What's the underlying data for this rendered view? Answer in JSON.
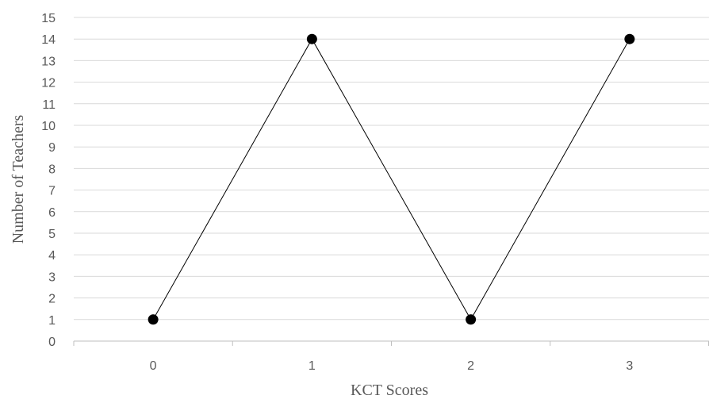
{
  "chart_data": {
    "type": "line",
    "title": "",
    "xlabel": "KCT Scores",
    "ylabel": "Number of Teachers",
    "categories": [
      "0",
      "1",
      "2",
      "3"
    ],
    "series": [
      {
        "values": [
          1,
          14,
          1,
          14
        ]
      }
    ],
    "ylim": [
      0,
      15
    ],
    "yticks": [
      "0",
      "1",
      "2",
      "3",
      "4",
      "5",
      "6",
      "7",
      "8",
      "9",
      "10",
      "11",
      "12",
      "13",
      "14",
      "15"
    ],
    "grid": true,
    "legend": "none",
    "colors": {
      "line": "#000000",
      "marker": "#000000",
      "grid": "#d9d9d9",
      "text": "#595959"
    }
  }
}
